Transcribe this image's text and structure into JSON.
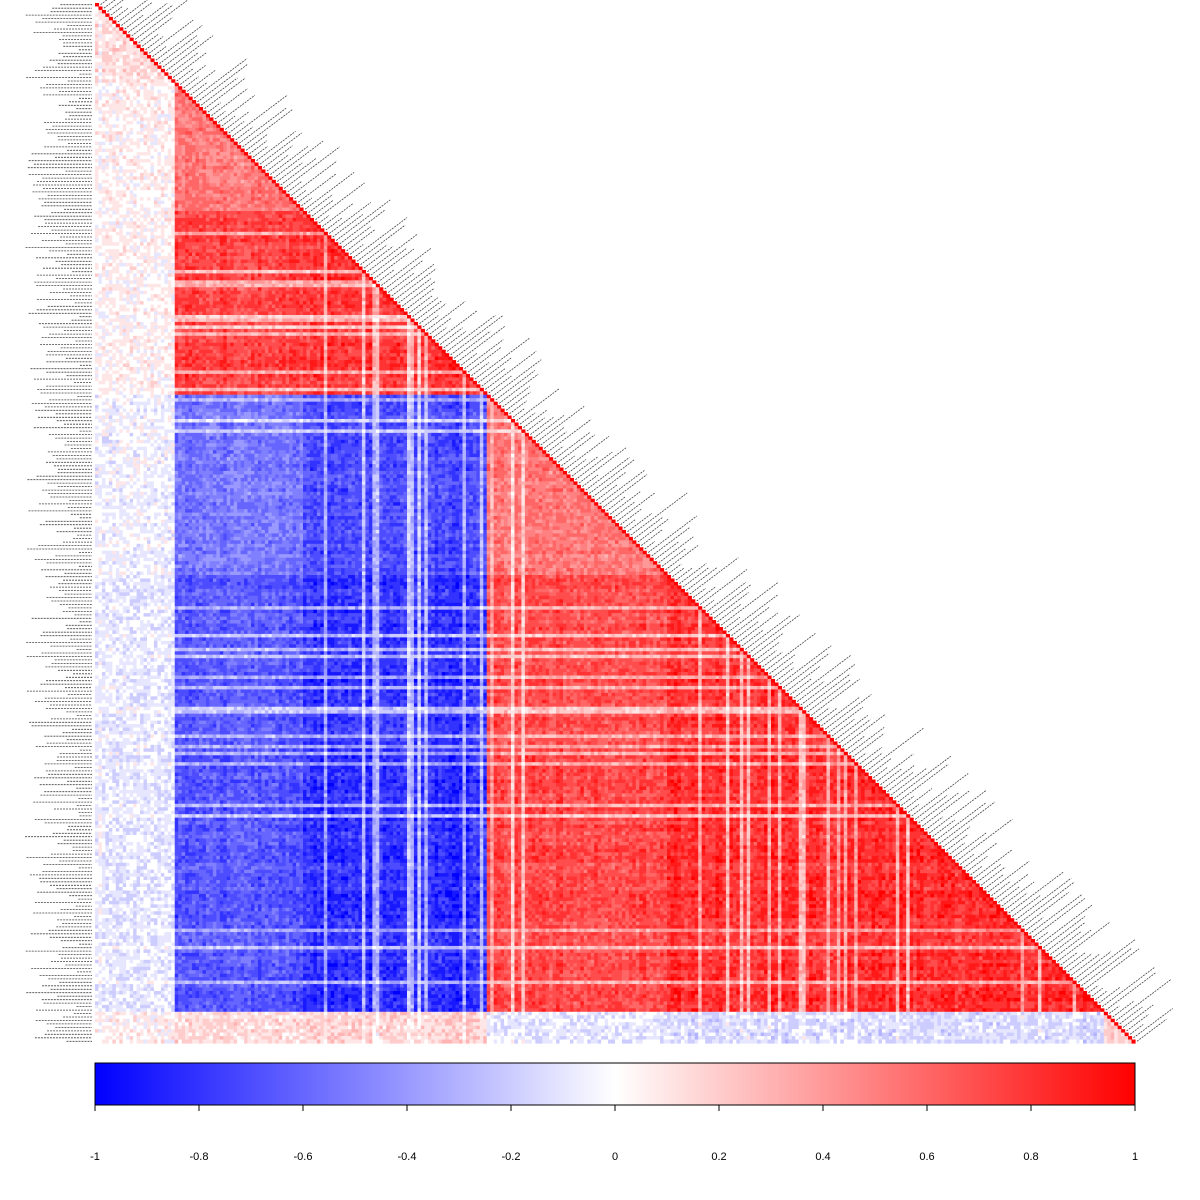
{
  "chart_data": {
    "type": "heatmap",
    "layout": "lower-triangle",
    "variable_count": 300,
    "row_labels_legible": false,
    "value_range": [
      -1,
      1
    ],
    "colors": {
      "negative": "#0000ff",
      "zero": "#ffffff",
      "positive": "#ff0000"
    },
    "block_boundaries": [
      0.075,
      0.2,
      0.375,
      0.55,
      0.97,
      1.0
    ],
    "block_correlation_matrix": [
      [
        0.15,
        0.05,
        0.05,
        -0.05,
        -0.1,
        0.05
      ],
      [
        0.05,
        0.6,
        0.85,
        -0.6,
        -0.75,
        0.15
      ],
      [
        0.05,
        0.85,
        0.9,
        -0.8,
        -0.92,
        0.2
      ],
      [
        -0.05,
        -0.6,
        -0.8,
        0.6,
        0.8,
        -0.1
      ],
      [
        -0.1,
        -0.75,
        -0.92,
        0.8,
        0.92,
        -0.15
      ],
      [
        0.05,
        0.15,
        0.2,
        -0.1,
        -0.15,
        0.2
      ]
    ],
    "colorbar": {
      "ticks": [
        -1,
        -0.8,
        -0.6,
        -0.4,
        -0.2,
        0,
        0.2,
        0.4,
        0.6,
        0.8,
        1
      ],
      "tick_labels": [
        "-1",
        "-0.8",
        "-0.6",
        "-0.4",
        "-0.2",
        "0",
        "0.2",
        "0.4",
        "0.6",
        "0.8",
        "1"
      ]
    }
  }
}
